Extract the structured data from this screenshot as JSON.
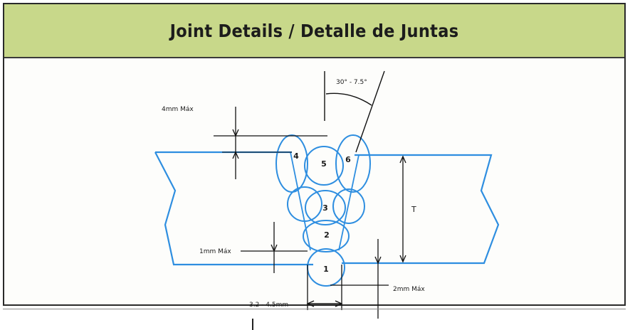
{
  "header": {
    "title": "Joint Details / Detalle de Juntas"
  },
  "diagram": {
    "angle_label": "30° - 7.5°",
    "top_reinforcement_label": "4mm Máx",
    "root_reinforcement_label": "1mm Máx",
    "root_gap_label": "2mm Máx",
    "root_face_label": "3.2 - 4.5mm",
    "thickness_label": "T",
    "beads": [
      "1",
      "2",
      "3",
      "4",
      "5",
      "6"
    ]
  },
  "colors": {
    "header_bg": "#c8d88a",
    "plate_line": "#2e8ee0",
    "dim_line": "#111111"
  }
}
